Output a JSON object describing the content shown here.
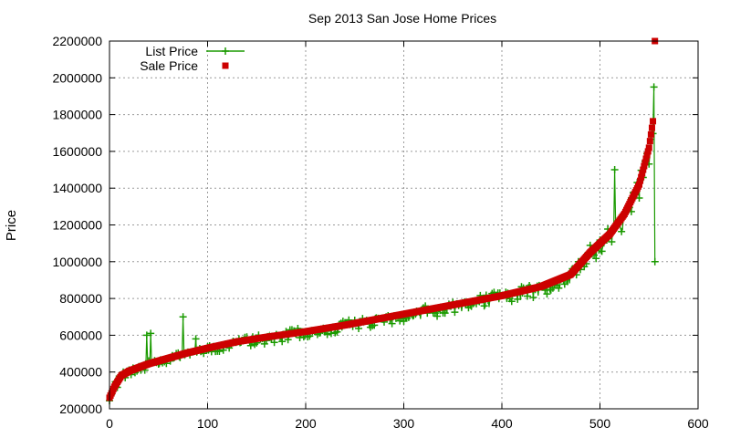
{
  "chart_data": {
    "type": "scatter",
    "title": "Sep 2013 San Jose Home Prices",
    "xlabel": "",
    "ylabel": "Price",
    "xlim": [
      0,
      600
    ],
    "ylim": [
      200000,
      2200000
    ],
    "xticks": [
      0,
      100,
      200,
      300,
      400,
      500,
      600
    ],
    "yticks": [
      200000,
      400000,
      600000,
      800000,
      1000000,
      1200000,
      1400000,
      1600000,
      1800000,
      2000000,
      2200000
    ],
    "grid": true,
    "legend_position": "top-left",
    "n_points": 555,
    "sale_curve_knots": [
      [
        0,
        260000
      ],
      [
        5,
        320000
      ],
      [
        12,
        380000
      ],
      [
        20,
        405000
      ],
      [
        40,
        445000
      ],
      [
        60,
        475000
      ],
      [
        80,
        505000
      ],
      [
        100,
        530000
      ],
      [
        130,
        565000
      ],
      [
        160,
        590000
      ],
      [
        200,
        620000
      ],
      [
        240,
        655000
      ],
      [
        280,
        695000
      ],
      [
        320,
        735000
      ],
      [
        360,
        775000
      ],
      [
        400,
        815000
      ],
      [
        440,
        865000
      ],
      [
        470,
        930000
      ],
      [
        490,
        1050000
      ],
      [
        510,
        1150000
      ],
      [
        525,
        1260000
      ],
      [
        540,
        1420000
      ],
      [
        550,
        1620000
      ],
      [
        555,
        1800000
      ]
    ],
    "sale_outlier": [
      556,
      2200000
    ],
    "list_notable_points": [
      [
        38,
        600000
      ],
      [
        42,
        610000
      ],
      [
        75,
        700000
      ],
      [
        88,
        580000
      ],
      [
        478,
        1000000
      ],
      [
        515,
        1500000
      ],
      [
        555,
        1950000
      ],
      [
        556,
        1000000
      ]
    ],
    "series": [
      {
        "name": "List Price",
        "marker": "plus",
        "color": "#1a9a00"
      },
      {
        "name": "Sale Price",
        "marker": "square",
        "color": "#cc0000"
      }
    ]
  }
}
